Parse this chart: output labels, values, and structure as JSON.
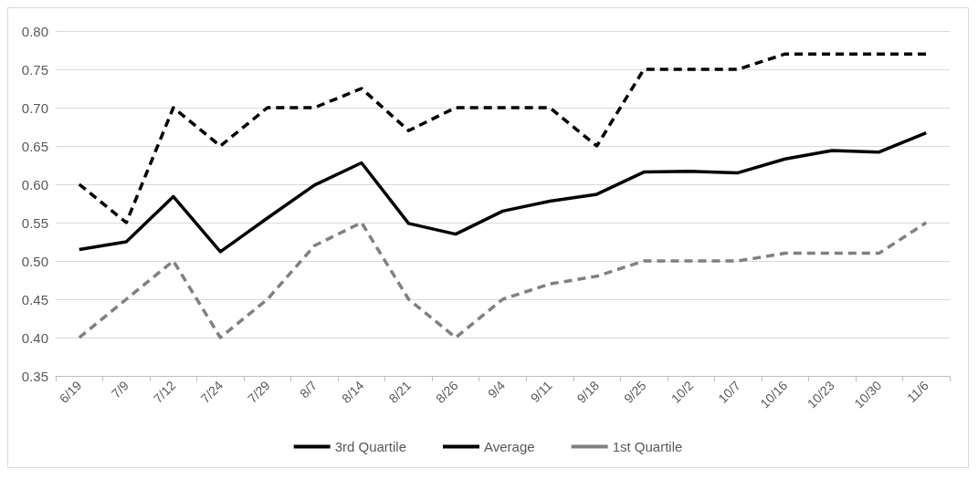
{
  "chart_data": {
    "type": "line",
    "categories": [
      "6/19",
      "7/9",
      "7/12",
      "7/24",
      "7/29",
      "8/7",
      "8/14",
      "8/21",
      "8/26",
      "9/4",
      "9/11",
      "9/18",
      "9/25",
      "10/2",
      "10/7",
      "10/16",
      "10/23",
      "10/30",
      "11/6"
    ],
    "series": [
      {
        "name": "3rd Quartile",
        "color": "#000000",
        "line_style": "dashed",
        "values": [
          0.6,
          0.55,
          0.7,
          0.65,
          0.7,
          0.7,
          0.725,
          0.67,
          0.7,
          0.7,
          0.7,
          0.65,
          0.75,
          0.75,
          0.75,
          0.77,
          0.77,
          0.77,
          0.77
        ]
      },
      {
        "name": "Average",
        "color": "#000000",
        "line_style": "solid",
        "values": [
          0.515,
          0.525,
          0.584,
          0.512,
          0.556,
          0.599,
          0.628,
          0.549,
          0.535,
          0.565,
          0.578,
          0.587,
          0.616,
          0.617,
          0.615,
          0.633,
          0.644,
          0.642,
          0.667
        ]
      },
      {
        "name": "1st Quartile",
        "color": "#808080",
        "line_style": "dashed",
        "values": [
          0.4,
          0.45,
          0.5,
          0.4,
          0.45,
          0.52,
          0.55,
          0.45,
          0.4,
          0.45,
          0.47,
          0.48,
          0.5,
          0.5,
          0.5,
          0.51,
          0.51,
          0.51,
          0.55
        ]
      }
    ],
    "ylim": [
      0.35,
      0.8
    ],
    "yticks": [
      {
        "value": 0.35,
        "label": "0.35"
      },
      {
        "value": 0.4,
        "label": "0.40"
      },
      {
        "value": 0.45,
        "label": "0.45"
      },
      {
        "value": 0.5,
        "label": "0.50"
      },
      {
        "value": 0.55,
        "label": "0.55"
      },
      {
        "value": 0.6,
        "label": "0.60"
      },
      {
        "value": 0.65,
        "label": "0.65"
      },
      {
        "value": 0.7,
        "label": "0.70"
      },
      {
        "value": 0.75,
        "label": "0.75"
      },
      {
        "value": 0.8,
        "label": "0.80"
      }
    ],
    "grid": "y",
    "legend": "bottom",
    "marker": "none"
  }
}
